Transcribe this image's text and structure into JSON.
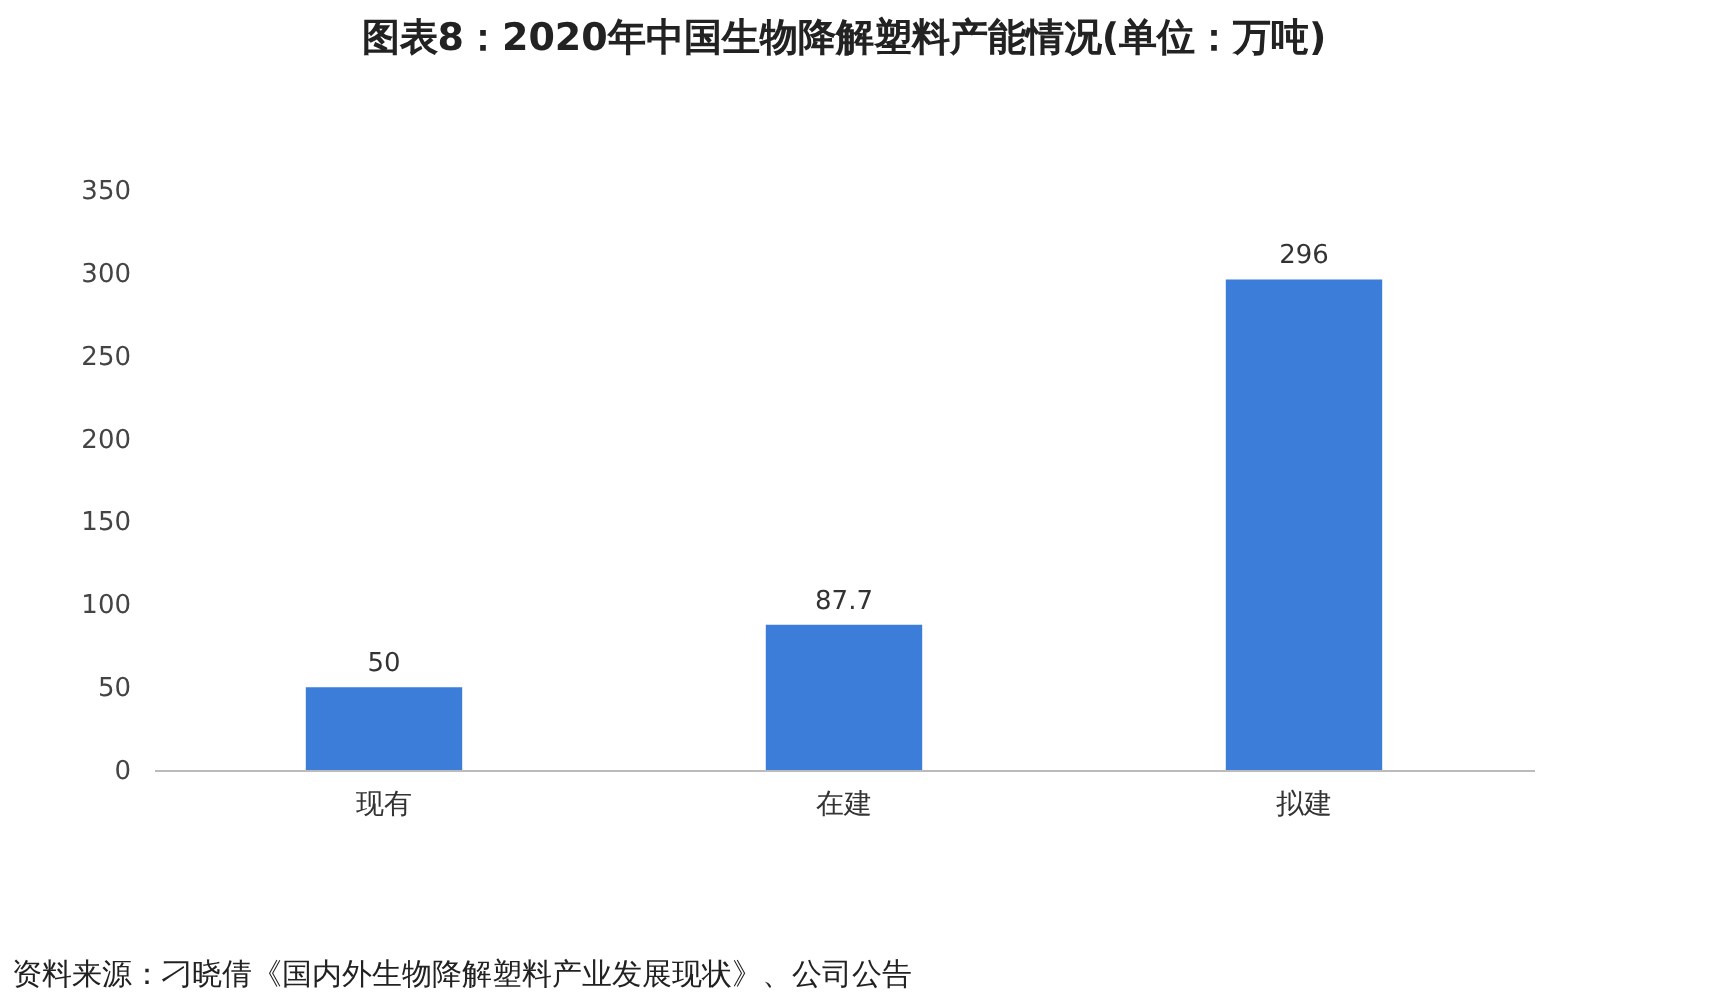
{
  "chart_data": {
    "type": "bar",
    "title": "图表8：2020年中国生物降解塑料产能情况(单位：万吨)",
    "categories": [
      "现有",
      "在建",
      "拟建"
    ],
    "values": [
      50,
      87.7,
      296
    ],
    "color": "#3b7dd8",
    "ylim": [
      0,
      350
    ],
    "yticks": [
      0,
      50,
      100,
      150,
      200,
      250,
      300,
      350
    ],
    "data_labels": true,
    "annotations": [
      "资料来源：刁晓倩《国内外生物降解塑料产业发展现状》、公司公告"
    ]
  }
}
